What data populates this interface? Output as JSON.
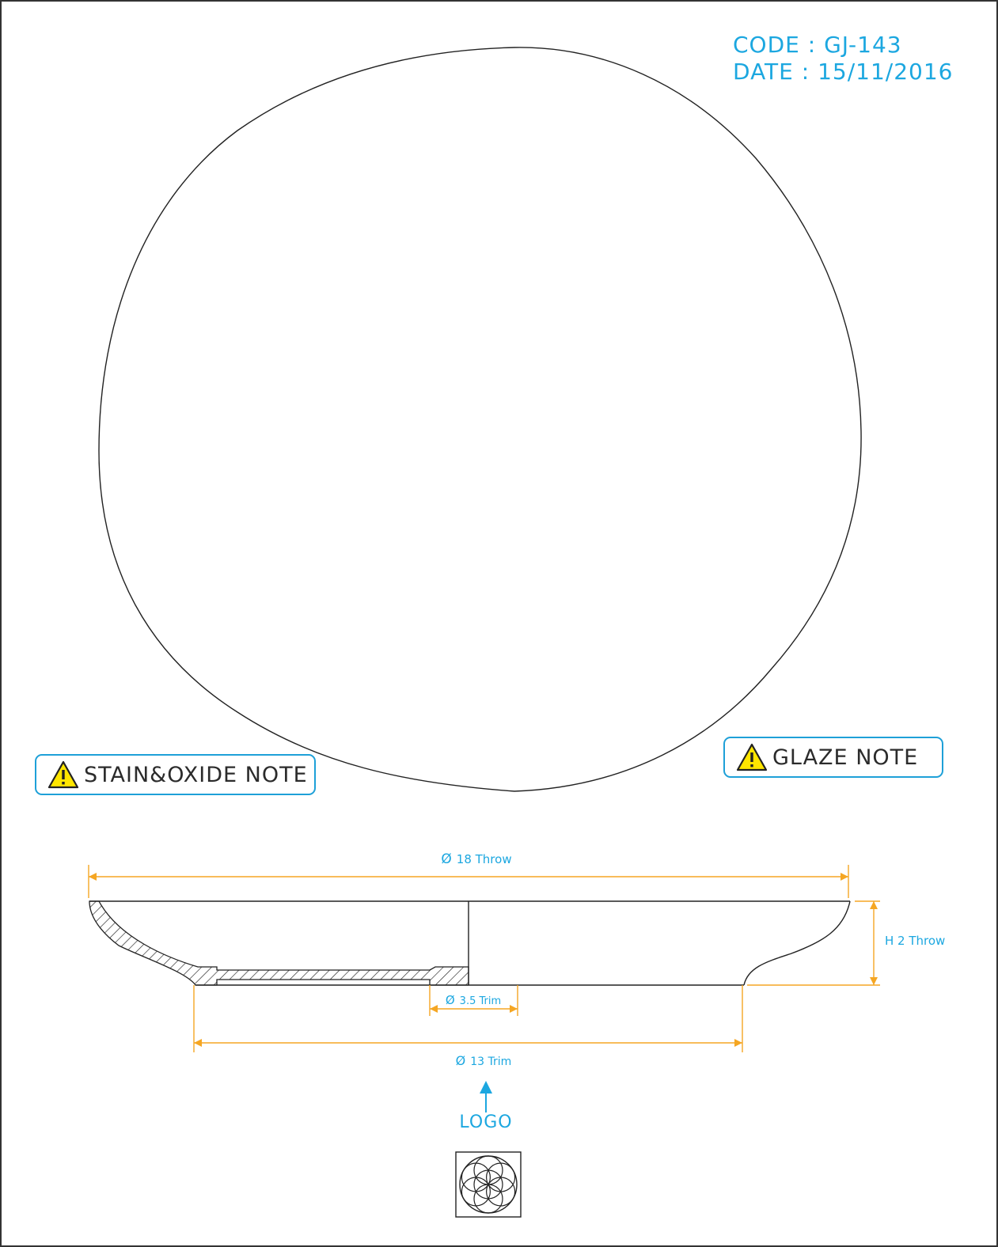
{
  "header": {
    "code": "CODE : GJ-143",
    "date": "DATE : 15/11/2016"
  },
  "notes": {
    "stain_oxide": "STAIN&OXIDE NOTE",
    "glaze": "GLAZE NOTE",
    "icon": "warning-triangle-icon"
  },
  "dimensions": {
    "diameter_symbol": "Ø",
    "throw_diameter": "18 Throw",
    "height": "H 2 Throw",
    "foot_inner": "3.5 Trim",
    "foot_outer": "13 Trim"
  },
  "logo": {
    "label": "LOGO",
    "icon": "seed-of-life-icon"
  },
  "colors": {
    "dimension_lines": "#f5a623",
    "annotation_text": "#1ca7e0",
    "note_border": "#1ea0d8",
    "warning_fill": "#ffe600",
    "outline": "#222222"
  }
}
